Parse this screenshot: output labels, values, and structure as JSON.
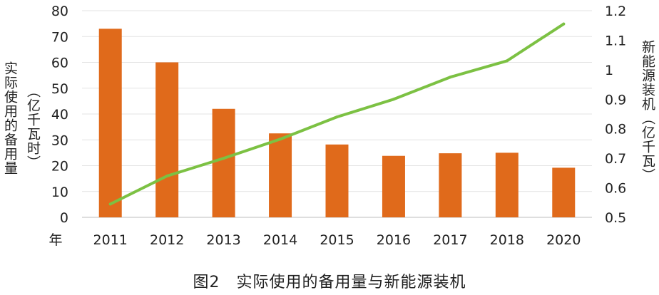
{
  "chart_data": {
    "type": "bar+line",
    "categories": [
      "2011",
      "2012",
      "2013",
      "2014",
      "2015",
      "2016",
      "2017",
      "2018",
      "2020"
    ],
    "series": [
      {
        "type": "bar",
        "axis": "left",
        "color": "#e06a1b",
        "values": [
          73,
          60,
          42,
          32.5,
          28.2,
          23.8,
          24.8,
          25,
          19.2
        ]
      },
      {
        "type": "line",
        "axis": "right",
        "color": "#7cc143",
        "values": [
          0.545,
          0.64,
          0.7,
          0.765,
          0.84,
          0.9,
          0.975,
          1.03,
          1.155
        ]
      }
    ],
    "left_axis": {
      "label": "实际使用的备用量",
      "unit": "（亿千瓦时）",
      "ylim": [
        0,
        80
      ],
      "ticks": [
        "0",
        "10",
        "20",
        "30",
        "40",
        "50",
        "60",
        "70",
        "80"
      ]
    },
    "right_axis": {
      "label": "新能源装机（亿千瓦）",
      "ylim": [
        0.5,
        1.2
      ],
      "ticks": [
        "0.5",
        "0.6",
        "0.7",
        "0.8",
        "0.9",
        "1",
        "1.1",
        "1.2"
      ]
    },
    "x_axis_label": "年",
    "gridlines": true,
    "caption": "图2　实际使用的备用量与新能源装机"
  }
}
